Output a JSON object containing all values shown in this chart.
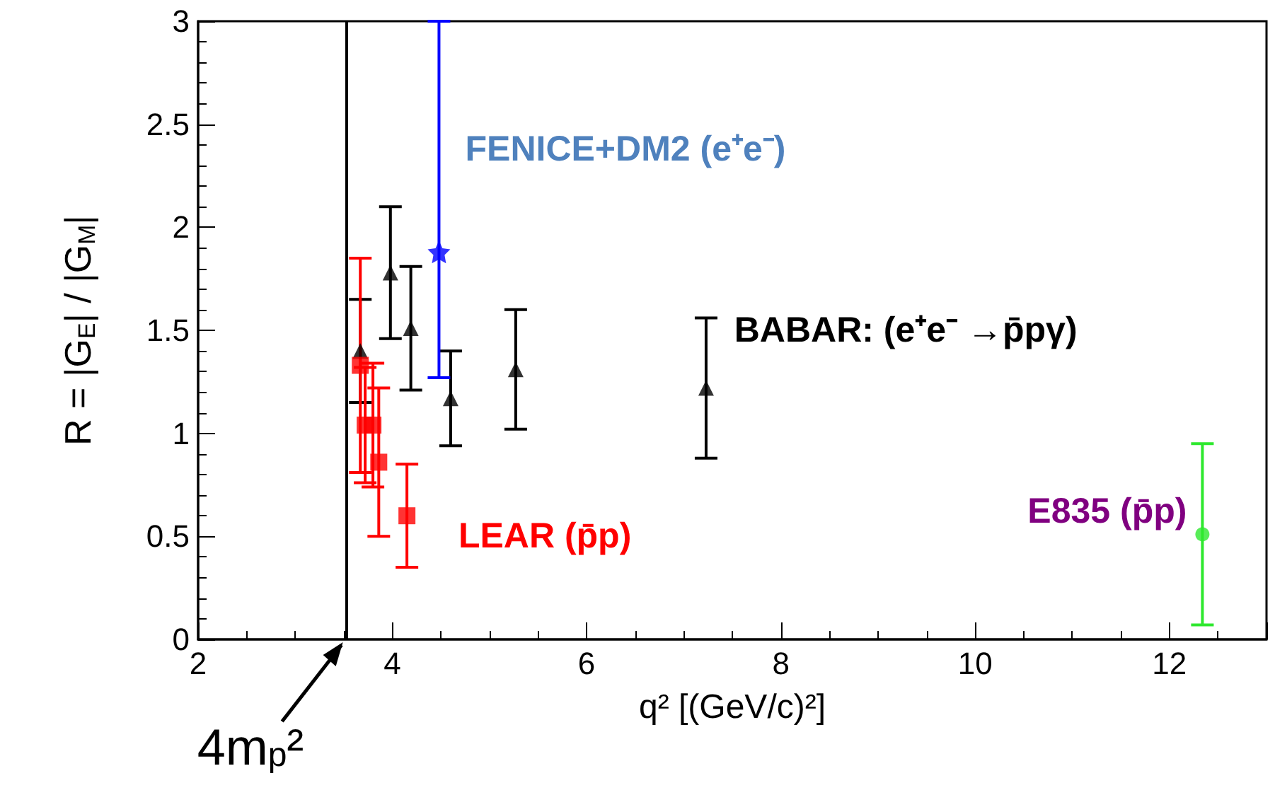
{
  "chart_data": {
    "type": "scatter",
    "xlabel": "q² [(GeV/c)²]",
    "ylabel": "R = |G$_{E}$| / |G$_{M}$|",
    "xlim": [
      2,
      13
    ],
    "xticks": [
      2,
      4,
      6,
      8,
      10,
      12
    ],
    "ylim": [
      0,
      3
    ],
    "yticks": [
      0,
      0.5,
      1,
      1.5,
      2,
      2.5,
      3
    ],
    "grid": false,
    "series": [
      {
        "name": "BABAR: (e⁺e⁻ →p̄pγ)",
        "color": "#000000",
        "marker": "triangle",
        "x": [
          3.67,
          3.98,
          4.19,
          4.6,
          5.27,
          7.23
        ],
        "values": [
          1.4,
          1.78,
          1.51,
          1.17,
          1.31,
          1.22
        ],
        "errors": [
          0.25,
          0.32,
          0.3,
          0.23,
          0.29,
          0.34
        ]
      },
      {
        "name": "FENICE+DM2 (e⁺e⁻)",
        "color": "#0000ff",
        "marker": "star",
        "x": [
          4.48
        ],
        "values": [
          1.88
        ],
        "errors": [
          [
            1.27,
            3.0
          ]
        ]
      },
      {
        "name": "LEAR (p̄p)",
        "color": "#ff0000",
        "marker": "square",
        "x": [
          3.67,
          3.72,
          3.8,
          3.86,
          4.15
        ],
        "values": [
          1.33,
          1.04,
          1.04,
          0.86,
          0.6
        ],
        "errors": [
          0.52,
          0.28,
          0.3,
          0.36,
          0.25
        ]
      },
      {
        "name": "E835 (p̄p)",
        "color": "#2ee82e",
        "marker": "circle",
        "x": [
          12.34
        ],
        "values": [
          0.51
        ],
        "errors": [
          0.44
        ]
      }
    ],
    "ref_lines": [
      {
        "axis": "x",
        "value": 3.52,
        "label": "4m$_{p}$²",
        "color": "#000000"
      }
    ]
  }
}
